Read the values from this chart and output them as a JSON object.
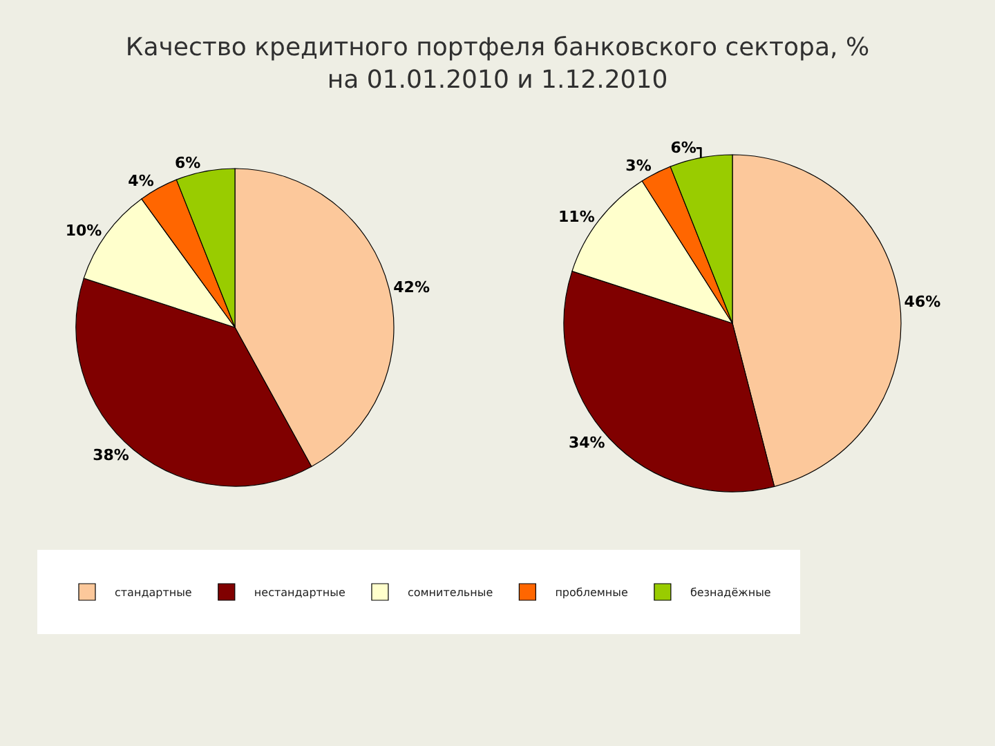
{
  "chart_data": {
    "type": "pie",
    "title": "Качество кредитного портфеля банковского сектора, %\nна 01.01.2010 и 1.12.2010",
    "categories": [
      "стандартные",
      "нестандартные",
      "сомнительные",
      "проблемные",
      "безнадёжные"
    ],
    "colors": [
      "#fcc89b",
      "#800000",
      "#ffffcc",
      "#ff6600",
      "#99cc00"
    ],
    "series": [
      {
        "values": [
          42,
          38,
          10,
          4,
          6
        ],
        "value_labels": [
          "42%",
          "38%",
          "10%",
          "4%",
          "6%"
        ]
      },
      {
        "values": [
          46,
          34,
          11,
          3,
          6
        ],
        "value_labels": [
          "46%",
          "34%",
          "11%",
          "3%",
          "6%"
        ]
      }
    ],
    "legend": "bottom"
  }
}
